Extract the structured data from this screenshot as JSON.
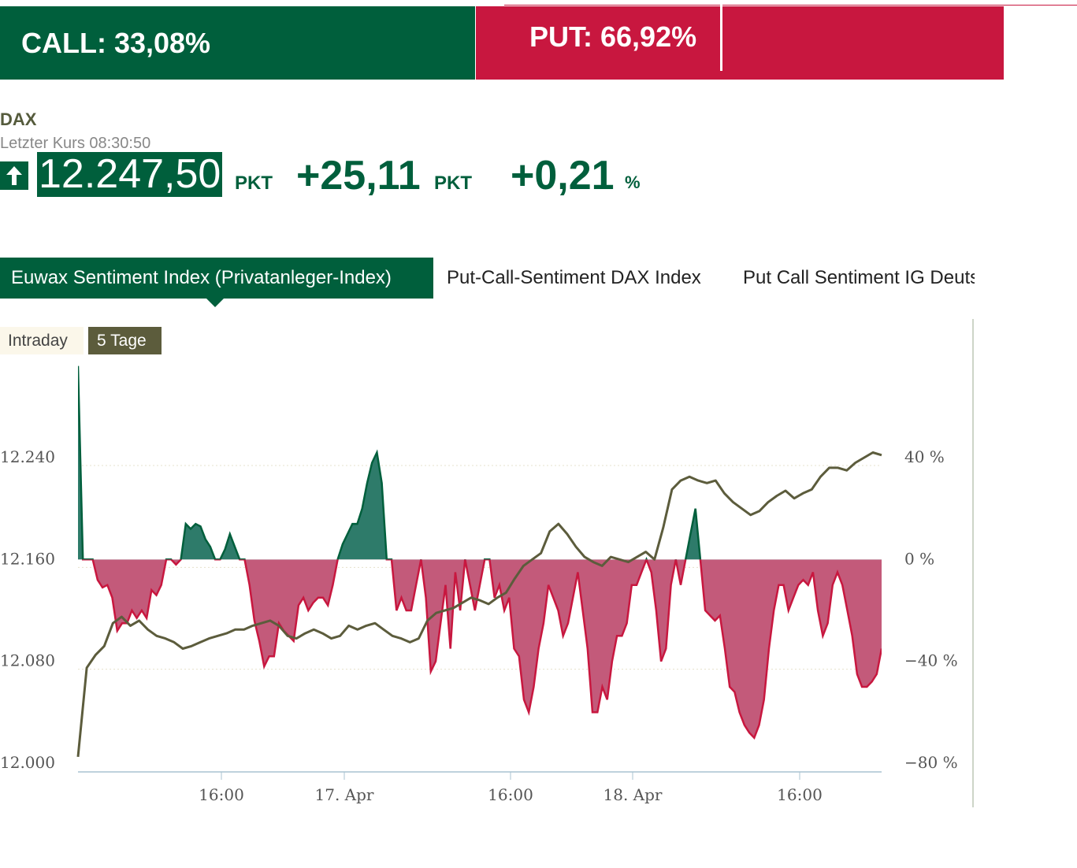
{
  "sentiment": {
    "call_label": "CALL: 33,08%",
    "put_label": "PUT: 66,92%",
    "call_share": 0.3308
  },
  "quote": {
    "name": "DAX",
    "last_label": "Letzter Kurs 08:30:50",
    "price": "12.247,50",
    "price_unit": "PKT",
    "change": "+25,11",
    "change_unit": "PKT",
    "change_pct": "+0,21",
    "pct_unit": "%",
    "arrow": "arrow-up-icon"
  },
  "tabs": [
    "Euwax Sentiment Index (Privatanleger-Index)",
    "Put-Call-Sentiment DAX Index",
    "Put Call Sentiment IG Deutschland"
  ],
  "range": {
    "intraday": "Intraday",
    "five_days": "5 Tage",
    "selected": "5 Tage"
  },
  "colors": {
    "call": "#005f3c",
    "put": "#c8173f",
    "index_line": "#5c5c3c"
  },
  "chart_data": {
    "type": "line",
    "x_ticks": [
      "16:00",
      "17. Apr",
      "16:00",
      "18. Apr",
      "16:00"
    ],
    "y_left": {
      "ticks": [
        "12.240",
        "12.160",
        "12.080",
        "12.000"
      ],
      "values": [
        12240,
        12160,
        12080,
        12000
      ],
      "range": [
        12000,
        12240
      ]
    },
    "y_right": {
      "ticks": [
        "40 %",
        "0 %",
        "−40 %",
        "−80 %"
      ],
      "values": [
        40,
        0,
        -40,
        -80
      ],
      "range": [
        -80,
        40
      ]
    },
    "series": [
      {
        "axis": "left",
        "values": [
          12005,
          12075,
          12085,
          12092,
          12110,
          12115,
          12108,
          12112,
          12105,
          12100,
          12098,
          12095,
          12090,
          12092,
          12095,
          12098,
          12100,
          12102,
          12105,
          12105,
          12108,
          12110,
          12112,
          12108,
          12100,
          12098,
          12102,
          12105,
          12102,
          12098,
          12100,
          12108,
          12105,
          12108,
          12110,
          12105,
          12100,
          12098,
          12095,
          12098,
          12112,
          12118,
          12120,
          12122,
          12126,
          12130,
          12128,
          12125,
          12130,
          12134,
          12145,
          12155,
          12160,
          12165,
          12182,
          12188,
          12180,
          12170,
          12162,
          12158,
          12155,
          12162,
          12160,
          12158,
          12162,
          12166,
          12160,
          12185,
          12215,
          12222,
          12225,
          12222,
          12220,
          12222,
          12212,
          12205,
          12200,
          12195,
          12198,
          12205,
          12210,
          12214,
          12208,
          12212,
          12215,
          12225,
          12232,
          12232,
          12230,
          12236,
          12240,
          12244,
          12242
        ]
      },
      {
        "axis": "right",
        "values": [
          76,
          0,
          0,
          0,
          -8,
          -11,
          -10,
          -15,
          -28,
          -25,
          -25,
          -20,
          -23,
          -20,
          -23,
          -12,
          -14,
          -10,
          0,
          0,
          -2,
          0,
          14,
          12,
          14,
          13,
          8,
          5,
          0,
          0,
          4,
          10,
          5,
          0,
          0,
          -10,
          -24,
          -32,
          -42,
          -38,
          -38,
          -25,
          -28,
          -30,
          -32,
          -18,
          -15,
          -20,
          -17,
          -15,
          -15,
          -18,
          -10,
          0,
          6,
          10,
          14,
          14,
          20,
          30,
          38,
          42,
          30,
          0,
          0,
          -20,
          -15,
          -20,
          -20,
          -10,
          0,
          -15,
          -44,
          -40,
          -25,
          -10,
          -35,
          -5,
          -20,
          0,
          -10,
          -20,
          -10,
          0,
          0,
          -15,
          -10,
          -20,
          -15,
          -35,
          -38,
          -55,
          -60,
          -50,
          -35,
          -25,
          -10,
          -15,
          -20,
          -30,
          -25,
          -15,
          -5,
          -20,
          -35,
          -60,
          -60,
          -50,
          -55,
          -40,
          -30,
          -30,
          -25,
          -10,
          -10,
          -5,
          0,
          -5,
          -20,
          -40,
          -35,
          -10,
          0,
          -10,
          0,
          10,
          20,
          0,
          -20,
          -22,
          -24,
          -22,
          -35,
          -50,
          -52,
          -60,
          -65,
          -68,
          -70,
          -65,
          -55,
          -35,
          -20,
          -10,
          -10,
          -20,
          -15,
          -10,
          -8,
          -10,
          -5,
          -20,
          -30,
          -25,
          -10,
          -5,
          -10,
          -20,
          -30,
          -45,
          -50,
          -50,
          -48,
          -45,
          -35
        ]
      }
    ],
    "grid": "horizontal-dotted",
    "legend": "none"
  }
}
